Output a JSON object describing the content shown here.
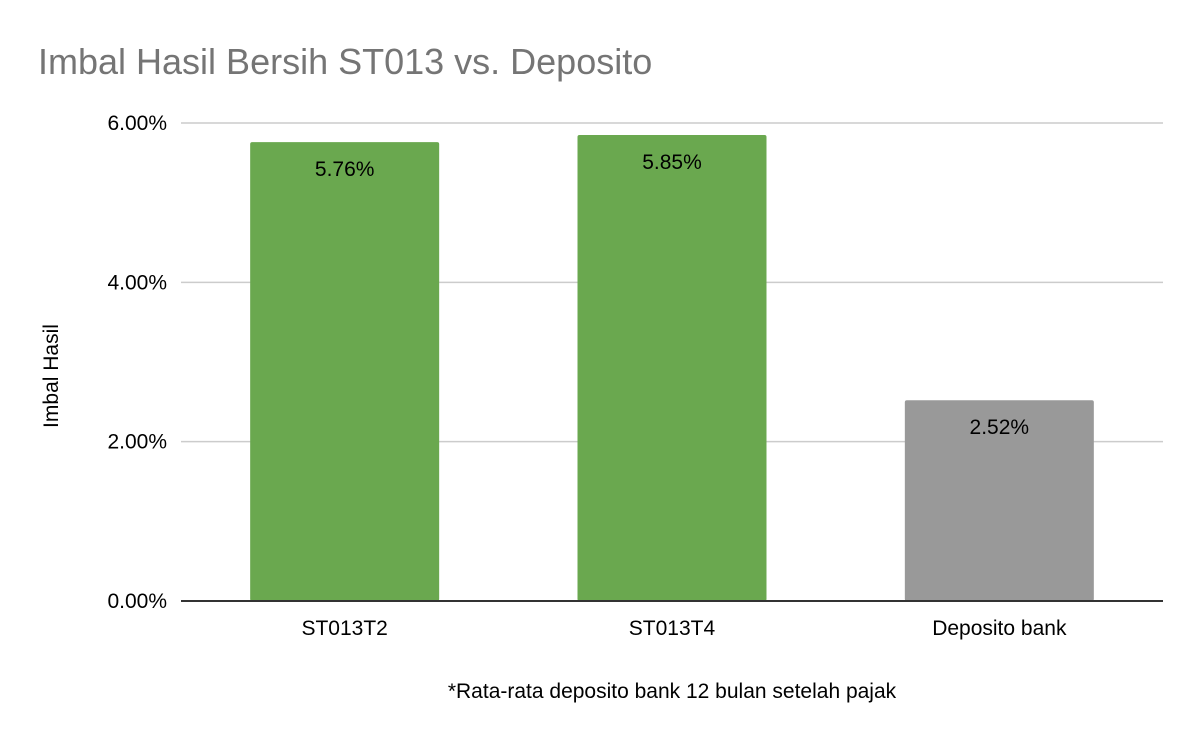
{
  "chart_data": {
    "type": "bar",
    "title": "Imbal Hasil Bersih ST013 vs. Deposito",
    "xlabel": "*Rata-rata deposito bank 12 bulan setelah pajak",
    "ylabel": "Imbal Hasil",
    "categories": [
      "ST013T2",
      "ST013T4",
      "Deposito bank"
    ],
    "values": [
      5.76,
      5.85,
      2.52
    ],
    "data_labels": [
      "5.76%",
      "5.85%",
      "2.52%"
    ],
    "bar_colors": [
      "#6aa84f",
      "#6aa84f",
      "#999999"
    ],
    "ylim": [
      0,
      6
    ],
    "yticks": [
      0,
      2,
      4,
      6
    ],
    "ytick_labels": [
      "0.00%",
      "2.00%",
      "4.00%",
      "6.00%"
    ],
    "grid": true,
    "legend": "none"
  }
}
